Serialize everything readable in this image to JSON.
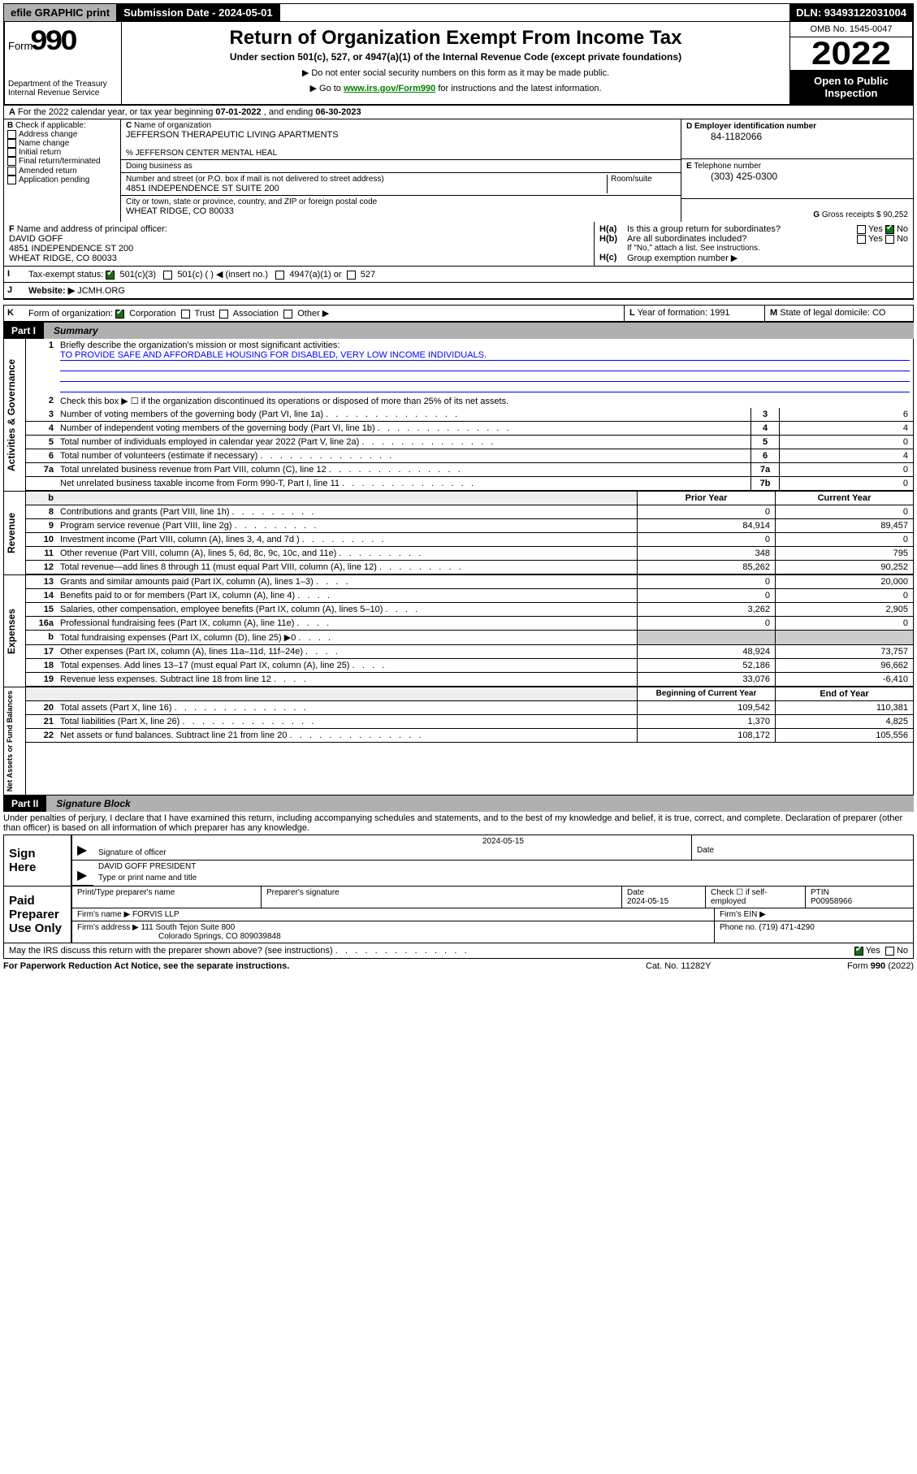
{
  "top": {
    "efile": "efile GRAPHIC print",
    "subdate_lbl": "Submission Date - ",
    "subdate": "2024-05-01",
    "dln_lbl": "DLN: ",
    "dln": "93493122031004"
  },
  "hdr": {
    "form_word": "Form",
    "form_no": "990",
    "title": "Return of Organization Exempt From Income Tax",
    "sub": "Under section 501(c), 527, or 4947(a)(1) of the Internal Revenue Code (except private foundations)",
    "note1": "▶ Do not enter social security numbers on this form as it may be made public.",
    "note2_a": "▶ Go to ",
    "note2_link": "www.irs.gov/Form990",
    "note2_b": " for instructions and the latest information.",
    "dept": "Department of the Treasury\nInternal Revenue Service",
    "omb": "OMB No. 1545-0047",
    "year": "2022",
    "open": "Open to Public Inspection"
  },
  "A": {
    "text_a": "For the 2022 calendar year, or tax year beginning ",
    "beg": "07-01-2022",
    "text_b": "  , and ending ",
    "end": "06-30-2023"
  },
  "B": {
    "hdr": "Check if applicable:",
    "opts": [
      "Address change",
      "Name change",
      "Initial return",
      "Final return/terminated",
      "Amended return",
      "Application pending"
    ]
  },
  "C": {
    "lbl_name": "Name of organization",
    "org": "JEFFERSON THERAPEUTIC LIVING APARTMENTS",
    "care": "% JEFFERSON CENTER MENTAL HEAL",
    "dba_lbl": "Doing business as",
    "addr_lbl": "Number and street (or P.O. box if mail is not delivered to street address)",
    "room_lbl": "Room/suite",
    "addr": "4851 INDEPENDENCE ST SUITE 200",
    "city_lbl": "City or town, state or province, country, and ZIP or foreign postal code",
    "city": "WHEAT RIDGE, CO  80033"
  },
  "D": {
    "lbl": "Employer identification number",
    "val": "84-1182066"
  },
  "E": {
    "lbl": "Telephone number",
    "val": "(303) 425-0300"
  },
  "G": {
    "lbl": "Gross receipts $ ",
    "val": "90,252"
  },
  "F": {
    "lbl": "Name and address of principal officer:",
    "name": "DAVID GOFF",
    "addr1": "4851 INDEPENDENCE ST 200",
    "addr2": "WHEAT RIDGE, CO  80033"
  },
  "H": {
    "a": "Is this a group return for subordinates?",
    "b": "Are all subordinates included?",
    "bnote": "If \"No,\" attach a list. See instructions.",
    "c": "Group exemption number ▶"
  },
  "I": {
    "lbl": "Tax-exempt status:",
    "opts": [
      "501(c)(3)",
      "501(c) (  ) ◀ (insert no.)",
      "4947(a)(1) or",
      "527"
    ]
  },
  "J": {
    "lbl": "Website: ▶ ",
    "val": "JCMH.ORG"
  },
  "K": {
    "lbl": "Form of organization:",
    "opts": [
      "Corporation",
      "Trust",
      "Association",
      "Other ▶"
    ]
  },
  "L": {
    "lbl": "Year of formation: ",
    "val": "1991"
  },
  "M": {
    "lbl": "State of legal domicile: ",
    "val": "CO"
  },
  "part1": {
    "tag": "Part I",
    "title": "Summary"
  },
  "p1": {
    "line1_lbl": "Briefly describe the organization's mission or most significant activities:",
    "line1_val": "TO PROVIDE SAFE AND AFFORDABLE HOUSING FOR DISABLED, VERY LOW INCOME INDIVIDUALS.",
    "line2": "Check this box ▶ ☐  if the organization discontinued its operations or disposed of more than 25% of its net assets.",
    "lines_gov": [
      {
        "n": "3",
        "t": "Number of voting members of the governing body (Part VI, line 1a)",
        "a": "6"
      },
      {
        "n": "4",
        "t": "Number of independent voting members of the governing body (Part VI, line 1b)",
        "a": "4"
      },
      {
        "n": "5",
        "t": "Total number of individuals employed in calendar year 2022 (Part V, line 2a)",
        "a": "0"
      },
      {
        "n": "6",
        "t": "Total number of volunteers (estimate if necessary)",
        "a": "4"
      },
      {
        "n": "7a",
        "t": "Total unrelated business revenue from Part VIII, column (C), line 12",
        "a": "0"
      },
      {
        "n": "  ",
        "t": "Net unrelated business taxable income from Form 990-T, Part I, line 11",
        "k": "7b",
        "a": "0"
      }
    ],
    "hdr_prior": "Prior Year",
    "hdr_curr": "Current Year",
    "rev": [
      {
        "n": "8",
        "t": "Contributions and grants (Part VIII, line 1h)",
        "p": "0",
        "c": "0"
      },
      {
        "n": "9",
        "t": "Program service revenue (Part VIII, line 2g)",
        "p": "84,914",
        "c": "89,457"
      },
      {
        "n": "10",
        "t": "Investment income (Part VIII, column (A), lines 3, 4, and 7d )",
        "p": "0",
        "c": "0"
      },
      {
        "n": "11",
        "t": "Other revenue (Part VIII, column (A), lines 5, 6d, 8c, 9c, 10c, and 11e)",
        "p": "348",
        "c": "795"
      },
      {
        "n": "12",
        "t": "Total revenue—add lines 8 through 11 (must equal Part VIII, column (A), line 12)",
        "p": "85,262",
        "c": "90,252"
      }
    ],
    "exp": [
      {
        "n": "13",
        "t": "Grants and similar amounts paid (Part IX, column (A), lines 1–3)",
        "p": "0",
        "c": "20,000"
      },
      {
        "n": "14",
        "t": "Benefits paid to or for members (Part IX, column (A), line 4)",
        "p": "0",
        "c": "0"
      },
      {
        "n": "15",
        "t": "Salaries, other compensation, employee benefits (Part IX, column (A), lines 5–10)",
        "p": "3,262",
        "c": "2,905"
      },
      {
        "n": "16a",
        "t": "Professional fundraising fees (Part IX, column (A), line 11e)",
        "p": "0",
        "c": "0"
      },
      {
        "n": "b",
        "t": "Total fundraising expenses (Part IX, column (D), line 25) ▶0",
        "p": "",
        "c": ""
      },
      {
        "n": "17",
        "t": "Other expenses (Part IX, column (A), lines 11a–11d, 11f–24e)",
        "p": "48,924",
        "c": "73,757"
      },
      {
        "n": "18",
        "t": "Total expenses. Add lines 13–17 (must equal Part IX, column (A), line 25)",
        "p": "52,186",
        "c": "96,662"
      },
      {
        "n": "19",
        "t": "Revenue less expenses. Subtract line 18 from line 12",
        "p": "33,076",
        "c": "-6,410"
      }
    ],
    "hdr_beg": "Beginning of Current Year",
    "hdr_end": "End of Year",
    "net": [
      {
        "n": "20",
        "t": "Total assets (Part X, line 16)",
        "p": "109,542",
        "c": "110,381"
      },
      {
        "n": "21",
        "t": "Total liabilities (Part X, line 26)",
        "p": "1,370",
        "c": "4,825"
      },
      {
        "n": "22",
        "t": "Net assets or fund balances. Subtract line 21 from line 20",
        "p": "108,172",
        "c": "105,556"
      }
    ],
    "side_gov": "Activities & Governance",
    "side_rev": "Revenue",
    "side_exp": "Expenses",
    "side_net": "Net Assets or Fund Balances"
  },
  "part2": {
    "tag": "Part II",
    "title": "Signature Block"
  },
  "sig": {
    "jurat": "Under penalties of perjury, I declare that I have examined this return, including accompanying schedules and statements, and to the best of my knowledge and belief, it is true, correct, and complete. Declaration of preparer (other than officer) is based on all information of which preparer has any knowledge.",
    "sign_here": "Sign Here",
    "sig_officer_lbl": "Signature of officer",
    "date_lbl": "Date",
    "sig_date": "2024-05-15",
    "name_title": "DAVID GOFF  PRESIDENT",
    "name_title_lbl": "Type or print name and title",
    "paid": "Paid Preparer Use Only",
    "prep_name_lbl": "Print/Type preparer's name",
    "prep_sig_lbl": "Preparer's signature",
    "prep_date": "2024-05-15",
    "self_emp": "Check ☐ if self-employed",
    "ptin_lbl": "PTIN",
    "ptin": "P00958966",
    "firm_name_lbl": "Firm's name      ▶ ",
    "firm_name": "FORVIS LLP",
    "firm_ein_lbl": "Firm's EIN ▶",
    "firm_addr_lbl": "Firm's address ▶ ",
    "firm_addr": "111 South Tejon Suite 800",
    "firm_city": "Colorado Springs, CO  809039848",
    "phone_lbl": "Phone no. ",
    "phone": "(719) 471-4290",
    "discuss": "May the IRS discuss this return with the preparer shown above? (see instructions)"
  },
  "footer": {
    "pra": "For Paperwork Reduction Act Notice, see the separate instructions.",
    "cat": "Cat. No. 11282Y",
    "form": "Form 990 (2022)"
  },
  "yn": {
    "yes": "Yes",
    "no": "No"
  }
}
